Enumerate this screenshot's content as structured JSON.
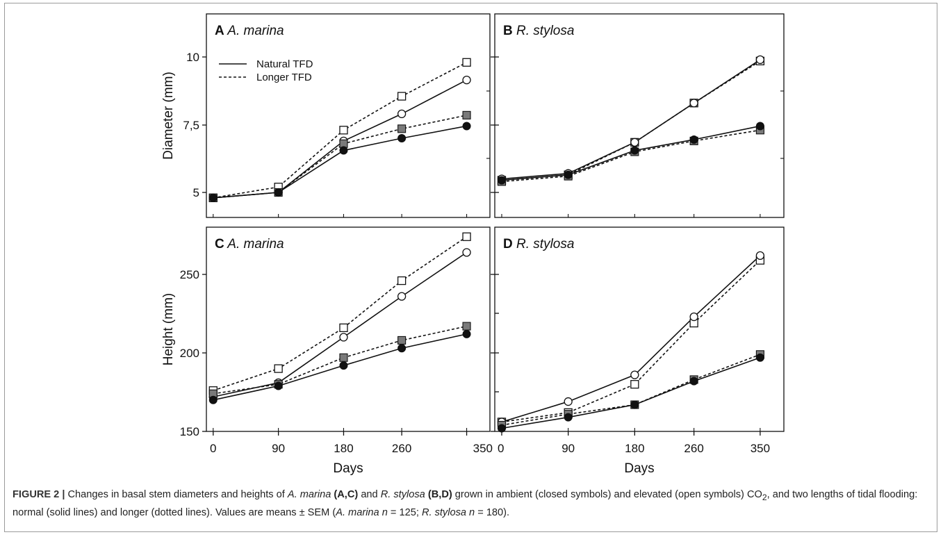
{
  "chart_data": [
    {
      "panel": "A",
      "species": "A. marina",
      "type": "line",
      "ylabel": "Diameter (mm)",
      "xlabel": "",
      "ylim": [
        3.9,
        11.3
      ],
      "yticks": [
        "5",
        "7,5",
        "10"
      ],
      "x": [
        0,
        90,
        180,
        260,
        350
      ],
      "legend": [
        "Natural TFD",
        "Longer TFD"
      ],
      "series": [
        {
          "style": "open-square",
          "values": [
            4.8,
            5.2,
            7.3,
            8.55,
            9.8
          ]
        },
        {
          "style": "open-circle",
          "values": [
            4.8,
            5.0,
            6.9,
            7.9,
            9.15
          ]
        },
        {
          "style": "grey-square",
          "values": [
            4.8,
            5.0,
            6.8,
            7.35,
            7.85
          ]
        },
        {
          "style": "filled-circle",
          "values": [
            4.8,
            5.0,
            6.55,
            7.0,
            7.45
          ]
        }
      ]
    },
    {
      "panel": "B",
      "species": "R. stylosa",
      "type": "line",
      "ylabel": "",
      "xlabel": "",
      "ylim": [
        3.9,
        11.3
      ],
      "yticks": [],
      "x": [
        0,
        90,
        180,
        260,
        350
      ],
      "series": [
        {
          "style": "open-square",
          "values": [
            5.45,
            5.65,
            6.85,
            8.3,
            9.85
          ]
        },
        {
          "style": "open-circle",
          "values": [
            5.5,
            5.7,
            6.85,
            8.3,
            9.9
          ]
        },
        {
          "style": "grey-square",
          "values": [
            5.4,
            5.6,
            6.5,
            6.9,
            7.3
          ]
        },
        {
          "style": "filled-circle",
          "values": [
            5.45,
            5.65,
            6.55,
            6.95,
            7.45
          ]
        }
      ]
    },
    {
      "panel": "C",
      "species": "A. marina",
      "type": "line",
      "ylabel": "Height (mm)",
      "xlabel": "Days",
      "ylim": [
        150,
        275
      ],
      "yticks": [
        "150",
        "200",
        "250"
      ],
      "xticks": [
        "0",
        "90",
        "180",
        "260",
        "350"
      ],
      "x": [
        0,
        90,
        180,
        260,
        350
      ],
      "series": [
        {
          "style": "open-square",
          "values": [
            176,
            190,
            216,
            246,
            274
          ]
        },
        {
          "style": "open-circle",
          "values": [
            172,
            181,
            210,
            236,
            264
          ]
        },
        {
          "style": "grey-square",
          "values": [
            174,
            180,
            197,
            208,
            217
          ]
        },
        {
          "style": "filled-circle",
          "values": [
            170,
            179,
            192,
            203,
            212
          ]
        }
      ]
    },
    {
      "panel": "D",
      "species": "R. stylosa",
      "type": "line",
      "ylabel": "",
      "xlabel": "Days",
      "ylim": [
        150,
        275
      ],
      "yticks": [],
      "xticks": [
        "0",
        "90",
        "180",
        "260",
        "350"
      ],
      "x": [
        0,
        90,
        180,
        260,
        350
      ],
      "series": [
        {
          "style": "open-square",
          "values": [
            156,
            162,
            180,
            219,
            259
          ]
        },
        {
          "style": "open-circle",
          "values": [
            156,
            169,
            186,
            223,
            262
          ]
        },
        {
          "style": "grey-square",
          "values": [
            154,
            161,
            167,
            183,
            199
          ]
        },
        {
          "style": "filled-circle",
          "values": [
            152,
            159,
            167,
            182,
            197
          ]
        }
      ]
    }
  ],
  "caption": {
    "label": "FIGURE 2 |",
    "text_parts": [
      {
        "t": " Changes in basal stem diameters and heights of ",
        "s": "n"
      },
      {
        "t": "A. marina",
        "s": "i"
      },
      {
        "t": " ",
        "s": "n"
      },
      {
        "t": "(A,C)",
        "s": "b"
      },
      {
        "t": " and ",
        "s": "n"
      },
      {
        "t": "R. stylosa",
        "s": "i"
      },
      {
        "t": " ",
        "s": "n"
      },
      {
        "t": "(B,D)",
        "s": "b"
      },
      {
        "t": " grown in ambient (closed symbols) and elevated (open symbols) CO",
        "s": "n"
      },
      {
        "t": "2",
        "s": "sub"
      },
      {
        "t": ", and two lengths of tidal flooding: normal (solid lines) and longer (dotted lines). Values are means ± SEM (",
        "s": "n"
      },
      {
        "t": "A. marina n",
        "s": "i"
      },
      {
        "t": " = 125; ",
        "s": "n"
      },
      {
        "t": "R. stylosa n",
        "s": "i"
      },
      {
        "t": " = 180).",
        "s": "n"
      }
    ]
  },
  "colors": {
    "grey_fill": "#7a7a7a",
    "line": "#111111"
  }
}
